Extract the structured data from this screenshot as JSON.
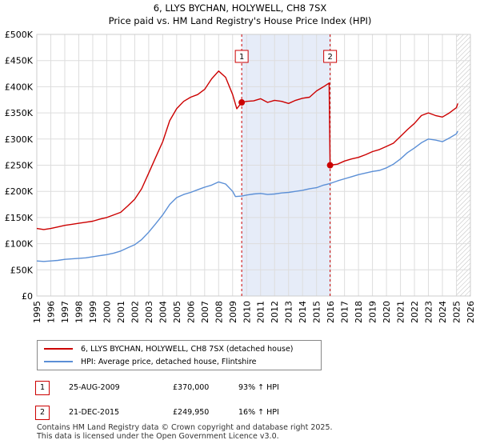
{
  "chart_data": {
    "type": "line",
    "title": "6, LLYS BYCHAN, HOLYWELL, CH8 7SX",
    "subtitle": "Price paid vs. HM Land Registry's House Price Index (HPI)",
    "xlabel": "",
    "ylabel": "",
    "xlim": [
      1995,
      2026
    ],
    "ylim": [
      0,
      500000
    ],
    "x_ticks": [
      "1995",
      "1996",
      "1997",
      "1998",
      "1999",
      "2000",
      "2001",
      "2002",
      "2003",
      "2004",
      "2005",
      "2006",
      "2007",
      "2008",
      "2009",
      "2010",
      "2011",
      "2012",
      "2013",
      "2014",
      "2015",
      "2016",
      "2017",
      "2018",
      "2019",
      "2020",
      "2021",
      "2022",
      "2023",
      "2024",
      "2025",
      "2026"
    ],
    "y_ticks": [
      {
        "value": 0,
        "label": "£0"
      },
      {
        "value": 50000,
        "label": "£50K"
      },
      {
        "value": 100000,
        "label": "£100K"
      },
      {
        "value": 150000,
        "label": "£150K"
      },
      {
        "value": 200000,
        "label": "£200K"
      },
      {
        "value": 250000,
        "label": "£250K"
      },
      {
        "value": 300000,
        "label": "£300K"
      },
      {
        "value": 350000,
        "label": "£350K"
      },
      {
        "value": 400000,
        "label": "£400K"
      },
      {
        "value": 450000,
        "label": "£450K"
      },
      {
        "value": 500000,
        "label": "£500K"
      }
    ],
    "grid": true,
    "shaded_period": {
      "start": 2009.65,
      "end": 2015.97
    },
    "forecast_hatch_start": 2025.0,
    "series": [
      {
        "name": "6, LLYS BYCHAN, HOLYWELL, CH8 7SX (detached house)",
        "color": "#cc0000",
        "points": [
          [
            1995.0,
            129000
          ],
          [
            1995.5,
            127000
          ],
          [
            1996.0,
            129000
          ],
          [
            1996.5,
            132000
          ],
          [
            1997.0,
            135000
          ],
          [
            1997.5,
            137000
          ],
          [
            1998.0,
            139000
          ],
          [
            1998.5,
            141000
          ],
          [
            1999.0,
            143000
          ],
          [
            1999.5,
            147000
          ],
          [
            2000.0,
            150000
          ],
          [
            2000.5,
            155000
          ],
          [
            2001.0,
            160000
          ],
          [
            2001.5,
            172000
          ],
          [
            2002.0,
            185000
          ],
          [
            2002.5,
            205000
          ],
          [
            2003.0,
            235000
          ],
          [
            2003.5,
            265000
          ],
          [
            2004.0,
            295000
          ],
          [
            2004.5,
            335000
          ],
          [
            2005.0,
            358000
          ],
          [
            2005.5,
            372000
          ],
          [
            2006.0,
            380000
          ],
          [
            2006.5,
            385000
          ],
          [
            2007.0,
            395000
          ],
          [
            2007.5,
            415000
          ],
          [
            2008.0,
            430000
          ],
          [
            2008.5,
            418000
          ],
          [
            2009.0,
            385000
          ],
          [
            2009.3,
            358000
          ],
          [
            2009.65,
            370000
          ],
          [
            2010.0,
            372000
          ],
          [
            2010.5,
            373000
          ],
          [
            2011.0,
            377000
          ],
          [
            2011.5,
            370000
          ],
          [
            2012.0,
            374000
          ],
          [
            2012.5,
            372000
          ],
          [
            2013.0,
            368000
          ],
          [
            2013.5,
            374000
          ],
          [
            2014.0,
            378000
          ],
          [
            2014.5,
            380000
          ],
          [
            2015.0,
            392000
          ],
          [
            2015.5,
            400000
          ],
          [
            2015.9,
            407000
          ],
          [
            2015.97,
            249950
          ],
          [
            2016.5,
            252000
          ],
          [
            2017.0,
            258000
          ],
          [
            2017.5,
            262000
          ],
          [
            2018.0,
            265000
          ],
          [
            2018.5,
            270000
          ],
          [
            2019.0,
            276000
          ],
          [
            2019.5,
            280000
          ],
          [
            2020.0,
            286000
          ],
          [
            2020.5,
            292000
          ],
          [
            2021.0,
            305000
          ],
          [
            2021.5,
            318000
          ],
          [
            2022.0,
            330000
          ],
          [
            2022.5,
            345000
          ],
          [
            2023.0,
            350000
          ],
          [
            2023.5,
            345000
          ],
          [
            2024.0,
            342000
          ],
          [
            2024.5,
            350000
          ],
          [
            2025.0,
            360000
          ],
          [
            2025.1,
            368000
          ]
        ]
      },
      {
        "name": "HPI: Average price, detached house, Flintshire",
        "color": "#5b8fd6",
        "points": [
          [
            1995.0,
            67000
          ],
          [
            1995.5,
            66000
          ],
          [
            1996.0,
            67000
          ],
          [
            1996.5,
            68000
          ],
          [
            1997.0,
            70000
          ],
          [
            1997.5,
            71000
          ],
          [
            1998.0,
            72000
          ],
          [
            1998.5,
            73000
          ],
          [
            1999.0,
            75000
          ],
          [
            1999.5,
            77000
          ],
          [
            2000.0,
            79000
          ],
          [
            2000.5,
            82000
          ],
          [
            2001.0,
            86000
          ],
          [
            2001.5,
            92000
          ],
          [
            2002.0,
            98000
          ],
          [
            2002.5,
            108000
          ],
          [
            2003.0,
            122000
          ],
          [
            2003.5,
            138000
          ],
          [
            2004.0,
            155000
          ],
          [
            2004.5,
            175000
          ],
          [
            2005.0,
            188000
          ],
          [
            2005.5,
            194000
          ],
          [
            2006.0,
            198000
          ],
          [
            2006.5,
            203000
          ],
          [
            2007.0,
            208000
          ],
          [
            2007.5,
            212000
          ],
          [
            2008.0,
            218000
          ],
          [
            2008.5,
            214000
          ],
          [
            2009.0,
            200000
          ],
          [
            2009.2,
            190000
          ],
          [
            2009.65,
            191000
          ],
          [
            2010.0,
            193000
          ],
          [
            2010.5,
            195000
          ],
          [
            2011.0,
            196000
          ],
          [
            2011.5,
            194000
          ],
          [
            2012.0,
            195000
          ],
          [
            2012.5,
            197000
          ],
          [
            2013.0,
            198000
          ],
          [
            2013.5,
            200000
          ],
          [
            2014.0,
            202000
          ],
          [
            2014.5,
            205000
          ],
          [
            2015.0,
            207000
          ],
          [
            2015.5,
            212000
          ],
          [
            2015.97,
            215000
          ],
          [
            2016.5,
            220000
          ],
          [
            2017.0,
            224000
          ],
          [
            2017.5,
            228000
          ],
          [
            2018.0,
            232000
          ],
          [
            2018.5,
            235000
          ],
          [
            2019.0,
            238000
          ],
          [
            2019.5,
            240000
          ],
          [
            2020.0,
            245000
          ],
          [
            2020.5,
            252000
          ],
          [
            2021.0,
            262000
          ],
          [
            2021.5,
            274000
          ],
          [
            2022.0,
            283000
          ],
          [
            2022.5,
            293000
          ],
          [
            2023.0,
            300000
          ],
          [
            2023.5,
            298000
          ],
          [
            2024.0,
            295000
          ],
          [
            2024.5,
            302000
          ],
          [
            2025.0,
            310000
          ],
          [
            2025.1,
            315000
          ]
        ]
      }
    ],
    "markers": [
      {
        "label": "1",
        "x": 2009.65,
        "y": 370000
      },
      {
        "label": "2",
        "x": 2015.97,
        "y": 249950
      }
    ]
  },
  "legend": {
    "items": [
      {
        "label": "6, LLYS BYCHAN, HOLYWELL, CH8 7SX (detached house)",
        "color": "#cc0000"
      },
      {
        "label": "HPI: Average price, detached house, Flintshire",
        "color": "#5b8fd6"
      }
    ]
  },
  "transactions": [
    {
      "num": "1",
      "date": "25-AUG-2009",
      "price": "£370,000",
      "hpi": "93% ↑ HPI"
    },
    {
      "num": "2",
      "date": "21-DEC-2015",
      "price": "£249,950",
      "hpi": "16% ↑ HPI"
    }
  ],
  "footer": {
    "line1": "Contains HM Land Registry data © Crown copyright and database right 2025.",
    "line2": "This data is licensed under the Open Government Licence v3.0."
  }
}
